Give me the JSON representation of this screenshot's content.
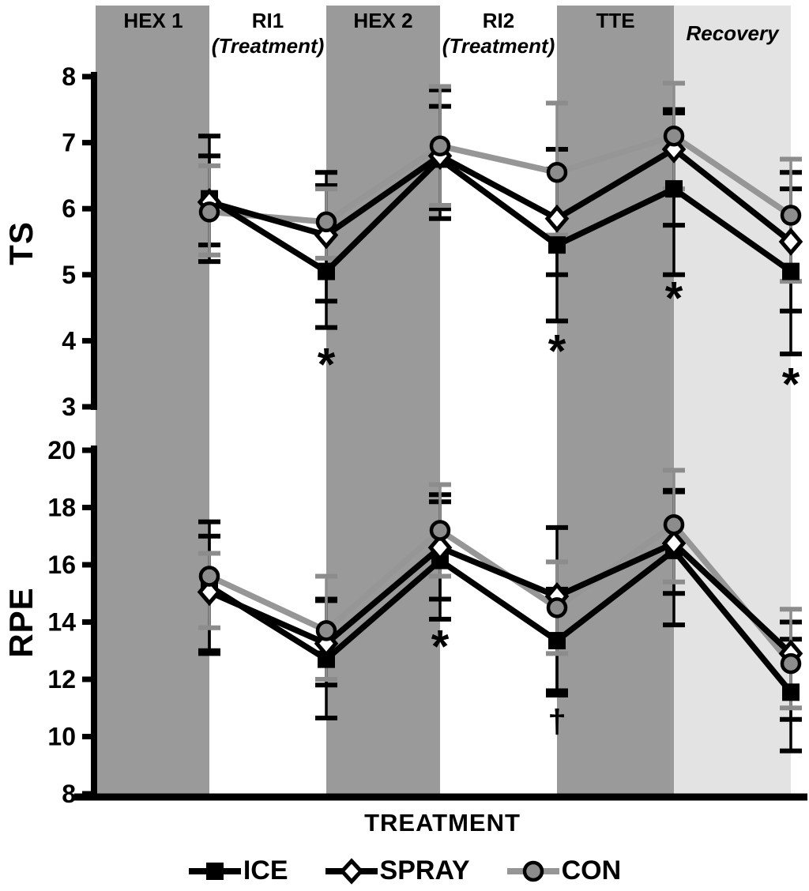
{
  "figure": {
    "colors": {
      "band_dark": "#9a9a9a",
      "band_light": "#e3e3e3",
      "black": "#000000",
      "con_line": "#969696",
      "con_fill": "#8c8c8c",
      "white": "#ffffff"
    }
  },
  "phases": [
    {
      "label": "HEX 1",
      "shade": "dark"
    },
    {
      "label": "RI1",
      "sublabel": "(Treatment)",
      "shade": "none"
    },
    {
      "label": "HEX 2",
      "shade": "dark"
    },
    {
      "label": "RI2",
      "sublabel": "(Treatment)",
      "shade": "none"
    },
    {
      "label": "TTE",
      "shade": "dark"
    },
    {
      "label": "Recovery",
      "shade": "light"
    }
  ],
  "xaxis_title": "TREATMENT",
  "legend": [
    {
      "label": "ICE",
      "marker": "square",
      "color": "#000000",
      "err_color": "#000000"
    },
    {
      "label": "SPRAY",
      "marker": "diamond",
      "color": "#000000",
      "err_color": "#000000"
    },
    {
      "label": "CON",
      "marker": "circle",
      "color": "#969696",
      "err_color": "#8c8c8c"
    }
  ],
  "chart_data": [
    {
      "type": "line",
      "panel": "TS",
      "ylabel": "TS",
      "ylim": [
        3,
        8
      ],
      "yticks": [
        8,
        7,
        6,
        5,
        4,
        3
      ],
      "categories": [
        "HEX 1",
        "RI1 (Treatment)",
        "HEX 2",
        "RI2 (Treatment)",
        "TTE",
        "Recovery"
      ],
      "series": [
        {
          "name": "ICE",
          "values": [
            6.15,
            5.05,
            6.75,
            5.45,
            6.3,
            5.05
          ],
          "err_low": [
            5.2,
            4.2,
            6.0,
            4.3,
            5.0,
            3.8
          ],
          "err_high": [
            7.1,
            6.55,
            7.8,
            6.6,
            7.45,
            6.3
          ]
        },
        {
          "name": "SPRAY",
          "values": [
            6.1,
            5.6,
            6.8,
            5.85,
            6.9,
            5.5
          ],
          "err_low": [
            5.45,
            4.6,
            5.85,
            5.0,
            5.75,
            4.45
          ],
          "err_high": [
            6.8,
            6.35,
            7.55,
            6.9,
            7.5,
            6.55
          ]
        },
        {
          "name": "CON",
          "values": [
            5.95,
            5.8,
            6.95,
            6.55,
            7.1,
            5.9
          ],
          "err_low": [
            5.3,
            5.25,
            6.05,
            5.6,
            6.3,
            4.9
          ],
          "err_high": [
            6.65,
            6.3,
            7.85,
            7.6,
            7.9,
            6.75
          ]
        }
      ],
      "annotations": [
        {
          "text": "*",
          "x_index": 1,
          "y": 3.75
        },
        {
          "text": "*",
          "x_index": 3,
          "y": 3.95
        },
        {
          "text": "*",
          "x_index": 4,
          "y": 4.75
        },
        {
          "text": "*",
          "x_index": 5,
          "y": 3.45
        }
      ]
    },
    {
      "type": "line",
      "panel": "RPE",
      "ylabel": "RPE",
      "ylim": [
        8,
        20
      ],
      "yticks": [
        20,
        18,
        16,
        14,
        12,
        10,
        8
      ],
      "categories": [
        "HEX 1",
        "RI1 (Treatment)",
        "HEX 2",
        "RI2 (Treatment)",
        "TTE",
        "Recovery"
      ],
      "series": [
        {
          "name": "ICE",
          "values": [
            15.25,
            12.7,
            16.15,
            13.35,
            16.5,
            11.55
          ],
          "err_low": [
            12.9,
            10.65,
            14.1,
            11.45,
            13.9,
            9.5
          ],
          "err_high": [
            17.5,
            14.8,
            18.2,
            15.15,
            18.6,
            13.4
          ]
        },
        {
          "name": "SPRAY",
          "values": [
            15.05,
            13.25,
            16.6,
            14.9,
            16.75,
            12.9
          ],
          "err_low": [
            13.0,
            11.8,
            14.8,
            11.6,
            15.0,
            10.6
          ],
          "err_high": [
            17.0,
            14.75,
            18.45,
            17.3,
            18.55,
            14.0
          ]
        },
        {
          "name": "CON",
          "values": [
            15.6,
            13.7,
            17.2,
            14.5,
            17.4,
            12.55
          ],
          "err_low": [
            13.8,
            12.0,
            15.6,
            12.9,
            15.4,
            11.0
          ],
          "err_high": [
            16.4,
            15.6,
            18.8,
            16.1,
            19.3,
            14.45
          ]
        }
      ],
      "annotations": [
        {
          "text": "*",
          "x_index": 2,
          "y": 13.4
        },
        {
          "text": "†",
          "x_index": 3,
          "y": 10.55
        }
      ]
    }
  ]
}
